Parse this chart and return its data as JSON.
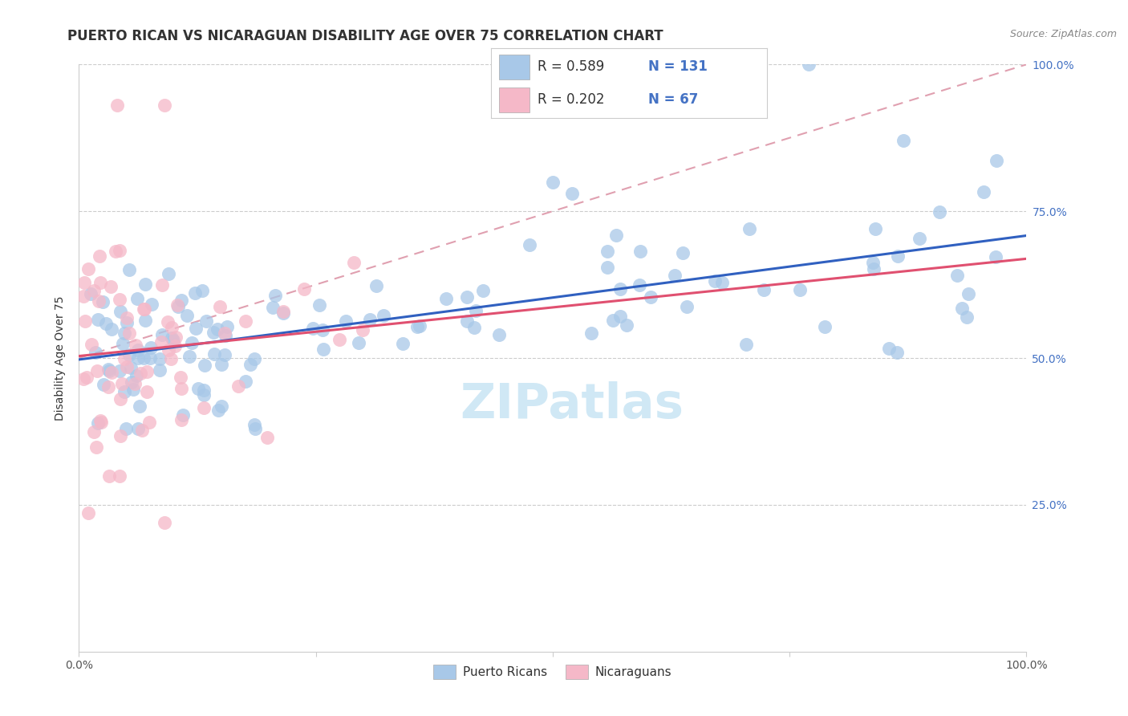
{
  "title": "PUERTO RICAN VS NICARAGUAN DISABILITY AGE OVER 75 CORRELATION CHART",
  "source": "Source: ZipAtlas.com",
  "ylabel_label": "Disability Age Over 75",
  "blue_R": 0.589,
  "blue_N": 131,
  "pink_R": 0.202,
  "pink_N": 67,
  "blue_color": "#a8c8e8",
  "pink_color": "#f5b8c8",
  "blue_line_color": "#3060c0",
  "pink_line_color": "#e05070",
  "dash_line_color": "#e0a0b0",
  "watermark_color": "#d0e8f5",
  "watermark_text": "ZIPatlas",
  "title_fontsize": 12,
  "axis_label_fontsize": 10,
  "tick_fontsize": 10,
  "legend_fontsize": 12,
  "source_fontsize": 9,
  "y_label_color": "#4472c4",
  "y_min": 0.0,
  "y_max": 1.0,
  "x_min": 0.0,
  "x_max": 1.0
}
